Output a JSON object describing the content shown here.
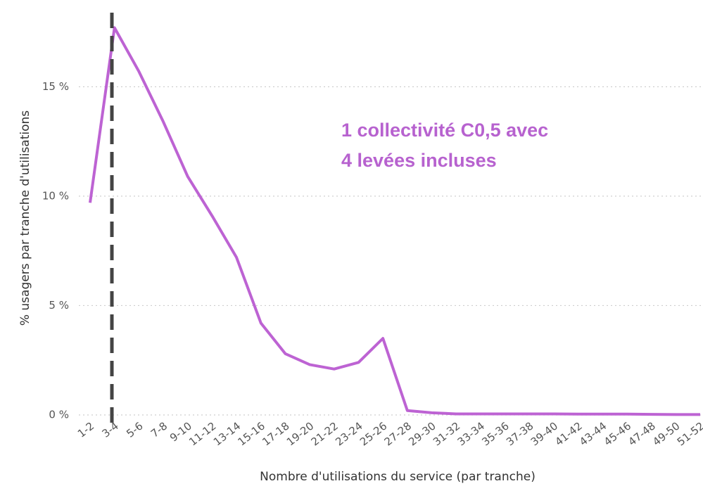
{
  "chart_data": {
    "type": "line",
    "y_label": "% usagers par tranche d'utilisations",
    "x_label": "Nombre d'utilisations du service (par tranche)",
    "annotations": [
      "1 collectivité C0,5 avec",
      "4 levées incluses"
    ],
    "categories": [
      "1-2",
      "3-4",
      "5-6",
      "7-8",
      "9-10",
      "11-12",
      "13-14",
      "15-16",
      "17-18",
      "19-20",
      "21-22",
      "23-24",
      "25-26",
      "27-28",
      "29-30",
      "31-32",
      "33-34",
      "35-36",
      "37-38",
      "39-40",
      "41-42",
      "43-44",
      "45-46",
      "47-48",
      "49-50",
      "51-52"
    ],
    "series": [
      {
        "color": "#bd63d3",
        "values": [
          9.7,
          17.7,
          15.7,
          13.4,
          10.9,
          9.1,
          7.2,
          4.2,
          2.8,
          2.3,
          2.1,
          2.4,
          3.5,
          0.2,
          0.1,
          0.05,
          0.05,
          0.05,
          0.05,
          0.05,
          0.04,
          0.04,
          0.04,
          0.03,
          0.02,
          0.02
        ]
      }
    ],
    "ylim": [
      0,
      18.3
    ],
    "yticks": [
      {
        "value": 0,
        "label": "0 %"
      },
      {
        "value": 5,
        "label": "5 %"
      },
      {
        "value": 10,
        "label": "10 %"
      },
      {
        "value": 15,
        "label": "15 %"
      }
    ],
    "grid": true
  }
}
